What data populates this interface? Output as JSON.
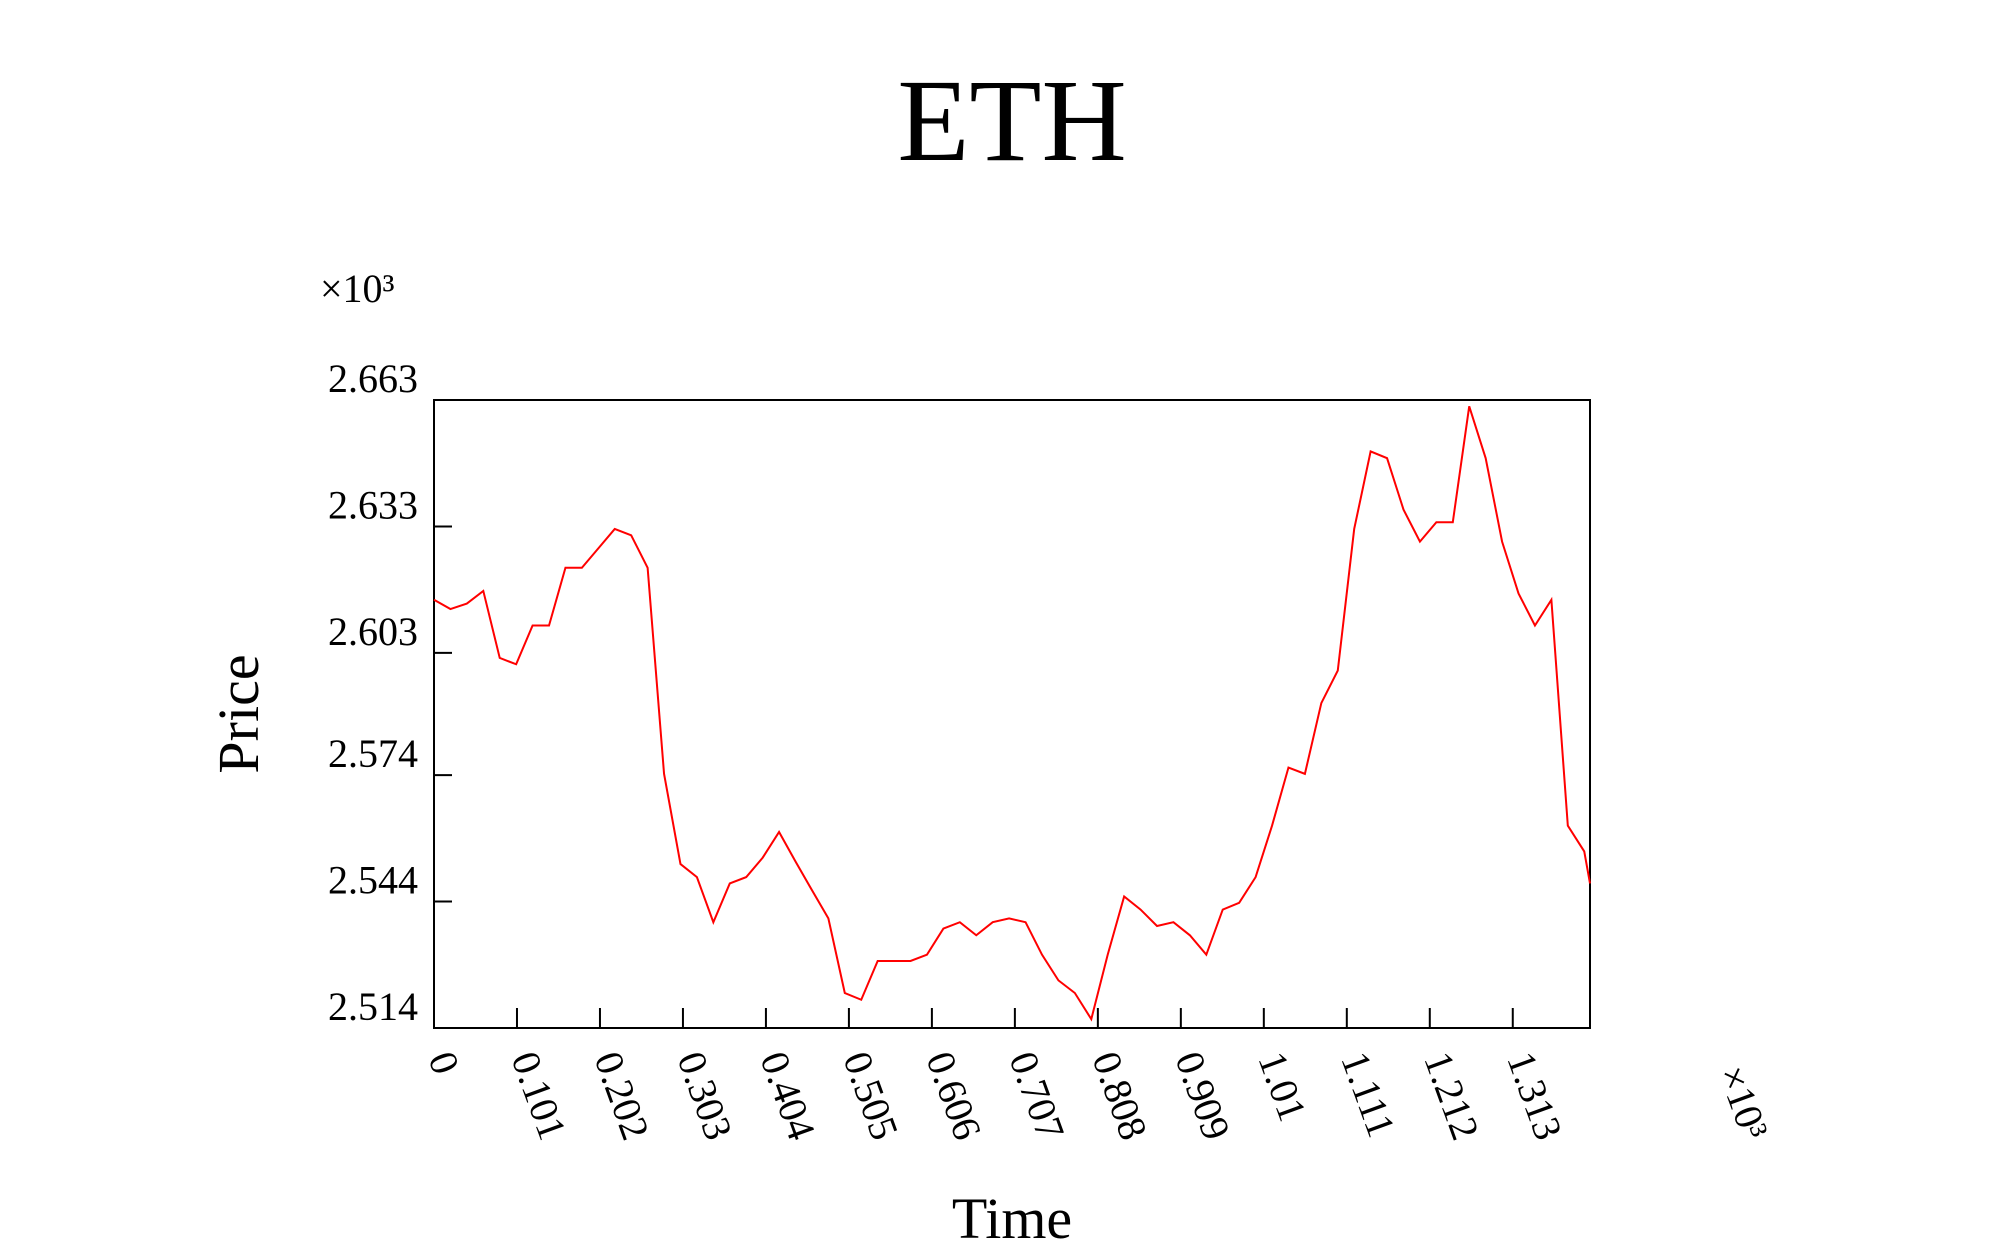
{
  "chart_data": {
    "type": "line",
    "title": "ETH",
    "xlabel": "Time",
    "ylabel": "Price",
    "x_multiplier": "×10³",
    "y_multiplier": "×10³",
    "x": [
      0,
      0.02,
      0.04,
      0.06,
      0.08,
      0.1,
      0.12,
      0.14,
      0.16,
      0.18,
      0.2,
      0.22,
      0.24,
      0.26,
      0.28,
      0.3,
      0.32,
      0.34,
      0.36,
      0.38,
      0.4,
      0.42,
      0.44,
      0.46,
      0.48,
      0.5,
      0.52,
      0.54,
      0.56,
      0.58,
      0.6,
      0.62,
      0.64,
      0.66,
      0.68,
      0.7,
      0.72,
      0.74,
      0.76,
      0.78,
      0.8,
      0.82,
      0.84,
      0.86,
      0.88,
      0.9,
      0.92,
      0.94,
      0.96,
      0.98,
      1.0,
      1.02,
      1.04,
      1.06,
      1.08,
      1.1,
      1.12,
      1.14,
      1.16,
      1.18,
      1.2,
      1.22,
      1.24,
      1.26,
      1.28,
      1.3,
      1.32,
      1.34,
      1.36,
      1.38,
      1.4,
      1.407
    ],
    "series": [
      {
        "name": "ETH",
        "color": "#ff0000",
        "values": [
          2.6156,
          2.6134,
          2.6147,
          2.6177,
          2.6018,
          2.6003,
          2.6095,
          2.6095,
          2.6232,
          2.6232,
          2.6278,
          2.6324,
          2.6309,
          2.6232,
          2.5743,
          2.5529,
          2.5498,
          2.5391,
          2.5483,
          2.5498,
          2.5544,
          2.5605,
          2.5535,
          2.5467,
          2.54,
          2.5223,
          2.5207,
          2.5299,
          2.5299,
          2.5299,
          2.5314,
          2.5376,
          2.5391,
          2.536,
          2.5391,
          2.54,
          2.5391,
          2.5314,
          2.5253,
          2.5223,
          2.5161,
          2.5314,
          2.5452,
          2.5421,
          2.5382,
          2.5391,
          2.536,
          2.5314,
          2.5421,
          2.5437,
          2.5498,
          2.562,
          2.5758,
          2.5743,
          2.5911,
          2.5988,
          2.6324,
          2.6508,
          2.6492,
          2.637,
          2.6294,
          2.634,
          2.634,
          2.6615,
          2.6492,
          2.6294,
          2.6171,
          2.6095,
          2.6156,
          2.562,
          2.5559,
          2.5483
        ]
      }
    ],
    "xlim": [
      0,
      1.407
    ],
    "ylim": [
      2.514,
      2.663
    ],
    "xticks": [
      0,
      0.101,
      0.202,
      0.303,
      0.404,
      0.505,
      0.606,
      0.707,
      0.808,
      0.909,
      1.01,
      1.111,
      1.212,
      1.313
    ],
    "yticks": [
      2.514,
      2.544,
      2.574,
      2.603,
      2.633,
      2.663
    ],
    "grid": false
  }
}
